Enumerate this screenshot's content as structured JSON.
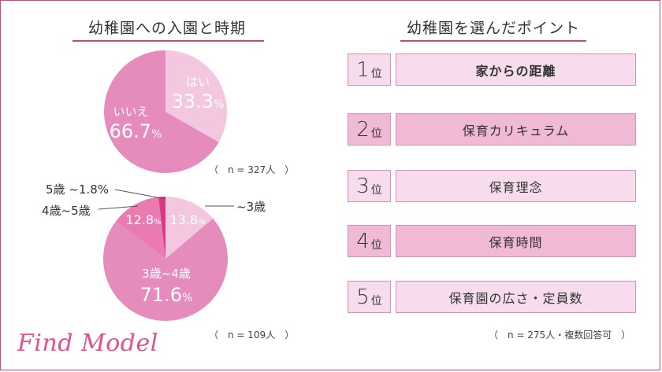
{
  "left_title": "幼稚園への入園と時期",
  "right_title": "幼稚園を選んだポイント",
  "note_top": "（　n = 327人　）",
  "note_bottom": "（　n = 109人　）",
  "note_right": "（　n = 275人・複数回答可　）",
  "logo": "Find Model",
  "colors": {
    "accent": "#d23f8a",
    "dark": "#e58cbc",
    "light": "#f2c7df",
    "deep": "#d63a85",
    "mid": "#e97bb0"
  },
  "chart_data": [
    {
      "type": "pie",
      "title": "幼稚園への入園と時期",
      "slices": [
        {
          "label": "はい",
          "value": 33.3,
          "display": "33.3",
          "pct": "%"
        },
        {
          "label": "いいえ",
          "value": 66.7,
          "display": "66.7",
          "pct": "%"
        }
      ]
    },
    {
      "type": "pie",
      "slices": [
        {
          "label": "~3歳",
          "value": 13.8,
          "display": "13.8",
          "pct": "%"
        },
        {
          "label": "3歳~4歳",
          "value": 71.6,
          "display": "71.6",
          "pct": "%"
        },
        {
          "label": "4歳~5歳",
          "value": 12.8,
          "display": "12.8",
          "pct": "%"
        },
        {
          "label": "5歳",
          "value": 1.8,
          "display": "5歳 ~1.8%"
        }
      ]
    },
    {
      "type": "table",
      "title": "幼稚園を選んだポイント",
      "rows": [
        {
          "rank": "1",
          "suffix": "位",
          "label": "家からの距離"
        },
        {
          "rank": "2",
          "suffix": "位",
          "label": "保育カリキュラム"
        },
        {
          "rank": "3",
          "suffix": "位",
          "label": "保育理念"
        },
        {
          "rank": "4",
          "suffix": "位",
          "label": "保育時間"
        },
        {
          "rank": "5",
          "suffix": "位",
          "label": "保育園の広さ・定員数"
        }
      ]
    }
  ]
}
